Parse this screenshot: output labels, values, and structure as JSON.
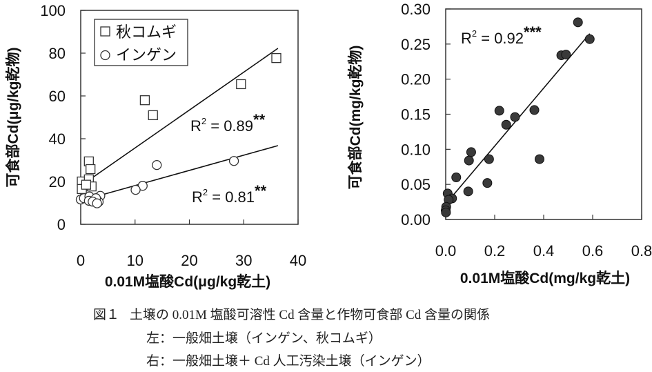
{
  "chart_data": [
    {
      "type": "scatter",
      "title": "",
      "xlabel": "0.01M塩酸Cd(μg/kg乾土)",
      "ylabel": "可食部Cd(μg/kg乾物)",
      "xlim": [
        0,
        40
      ],
      "ylim": [
        0,
        100
      ],
      "xticks": [
        "0",
        "10",
        "20",
        "30",
        "40"
      ],
      "yticks": [
        "0",
        "20",
        "40",
        "60",
        "80",
        "100"
      ],
      "grid": false,
      "legend": {
        "placement": "top-left",
        "entries": [
          "秋コムギ",
          "インゲン"
        ]
      },
      "series": [
        {
          "name": "秋コムギ",
          "marker": "square",
          "points": [
            [
              36.0,
              77.7
            ],
            [
              29.5,
              65.5
            ],
            [
              11.8,
              58
            ],
            [
              13.3,
              51
            ],
            [
              1.5,
              29.4
            ],
            [
              1.8,
              25.8
            ],
            [
              0.2,
              20
            ],
            [
              1.5,
              21
            ],
            [
              2.0,
              17.7
            ],
            [
              0.2,
              16.5
            ],
            [
              1.0,
              18.5
            ]
          ],
          "fit": {
            "slope": 1.77,
            "intercept": 18.0,
            "x_range": [
              0.4,
              36.3
            ],
            "label": "R2 = 0.89**"
          }
        },
        {
          "name": "インゲン",
          "marker": "circle",
          "points": [
            [
              28.2,
              29.6
            ],
            [
              14.0,
              27.7
            ],
            [
              11.4,
              18
            ],
            [
              10.1,
              16.1
            ],
            [
              0,
              11.6
            ],
            [
              0.6,
              12.2
            ],
            [
              1.6,
              13
            ],
            [
              3.6,
              13.3
            ],
            [
              3.3,
              10.5
            ],
            [
              1.5,
              11
            ],
            [
              2.8,
              12.2
            ],
            [
              2.2,
              10.6
            ],
            [
              3.0,
              9.8
            ]
          ],
          "fit": {
            "slope": 0.71,
            "intercept": 11.0,
            "x_range": [
              0.4,
              36.3
            ],
            "label": "R2 = 0.81**"
          }
        }
      ],
      "annotations": [
        {
          "base": "R",
          "sup": "2",
          "text": " = 0.89",
          "stars": "**"
        },
        {
          "base": "R",
          "sup": "2",
          "text": " = 0.81",
          "stars": "**"
        }
      ]
    },
    {
      "type": "scatter",
      "title": "",
      "xlabel": "0.01M塩酸Cd(mg/kg乾土)",
      "ylabel": "可食部Cd(mg/kg乾物)",
      "xlim": [
        0,
        0.8
      ],
      "ylim": [
        0,
        0.3
      ],
      "xticks": [
        "0.0",
        "0.2",
        "0.4",
        "0.6",
        "0.8"
      ],
      "yticks": [
        "0.00",
        "0.05",
        "0.10",
        "0.15",
        "0.20",
        "0.25",
        "0.30"
      ],
      "grid": false,
      "series": [
        {
          "name": "インゲン",
          "marker": "filled-circle",
          "points": [
            [
              0.54,
              0.281
            ],
            [
              0.588,
              0.257
            ],
            [
              0.472,
              0.234
            ],
            [
              0.491,
              0.235
            ],
            [
              0.219,
              0.155
            ],
            [
              0.362,
              0.156
            ],
            [
              0.283,
              0.146
            ],
            [
              0.247,
              0.135
            ],
            [
              0.104,
              0.096
            ],
            [
              0.095,
              0.084
            ],
            [
              0.177,
              0.086
            ],
            [
              0.383,
              0.086
            ],
            [
              0.043,
              0.06
            ],
            [
              0.17,
              0.052
            ],
            [
              0.092,
              0.04
            ],
            [
              0.008,
              0.037
            ],
            [
              0.026,
              0.03
            ],
            [
              0.012,
              0.028
            ],
            [
              0.002,
              0.018
            ],
            [
              0.0,
              0.013
            ],
            [
              0.001,
              0.01
            ]
          ],
          "fit": {
            "slope": 0.413,
            "intercept": 0.022,
            "x_range": [
              0.022,
              0.588
            ]
          }
        }
      ],
      "annotations": [
        {
          "base": "R",
          "sup": "2",
          "text": " = 0.92",
          "stars": "***"
        }
      ]
    }
  ],
  "caption": {
    "line1_label": "図１",
    "line1": "土壌の 0.01M 塩酸可溶性 Cd 含量と作物可食部 Cd 含量の関係",
    "line2": "左：一般畑土壌（インゲン、秋コムギ）",
    "line3": "右：一般畑土壌＋ Cd 人工汚染土壌（インゲン）"
  }
}
